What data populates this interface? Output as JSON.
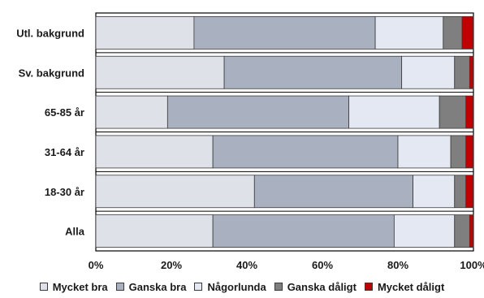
{
  "chart_data": {
    "type": "bar",
    "orientation": "horizontal",
    "stacked": true,
    "categories": [
      "Utl. bakgrund",
      "Sv. bakgrund",
      "65-85 år",
      "31-64 år",
      "18-30 år",
      "Alla"
    ],
    "series": [
      {
        "name": "Mycket bra",
        "color": "#dfe1e8",
        "values": [
          26,
          34,
          19,
          31,
          42,
          31
        ]
      },
      {
        "name": "Ganska bra",
        "color": "#a9b1c1",
        "values": [
          48,
          47,
          48,
          49,
          42,
          48
        ]
      },
      {
        "name": "Någorlunda",
        "color": "#e3e8f2",
        "values": [
          18,
          14,
          24,
          14,
          11,
          16
        ]
      },
      {
        "name": "Ganska dåligt",
        "color": "#7f7f7f",
        "values": [
          5,
          4,
          7,
          4,
          3,
          4
        ]
      },
      {
        "name": "Mycket dåligt",
        "color": "#c00000",
        "values": [
          3,
          1,
          2,
          2,
          2,
          1
        ]
      }
    ],
    "xlim": [
      0,
      100
    ],
    "xticks": [
      "0%",
      "20%",
      "40%",
      "60%",
      "80%",
      "100%"
    ],
    "grid": true,
    "legend": "bottom",
    "title": "",
    "xlabel": "",
    "ylabel": ""
  }
}
